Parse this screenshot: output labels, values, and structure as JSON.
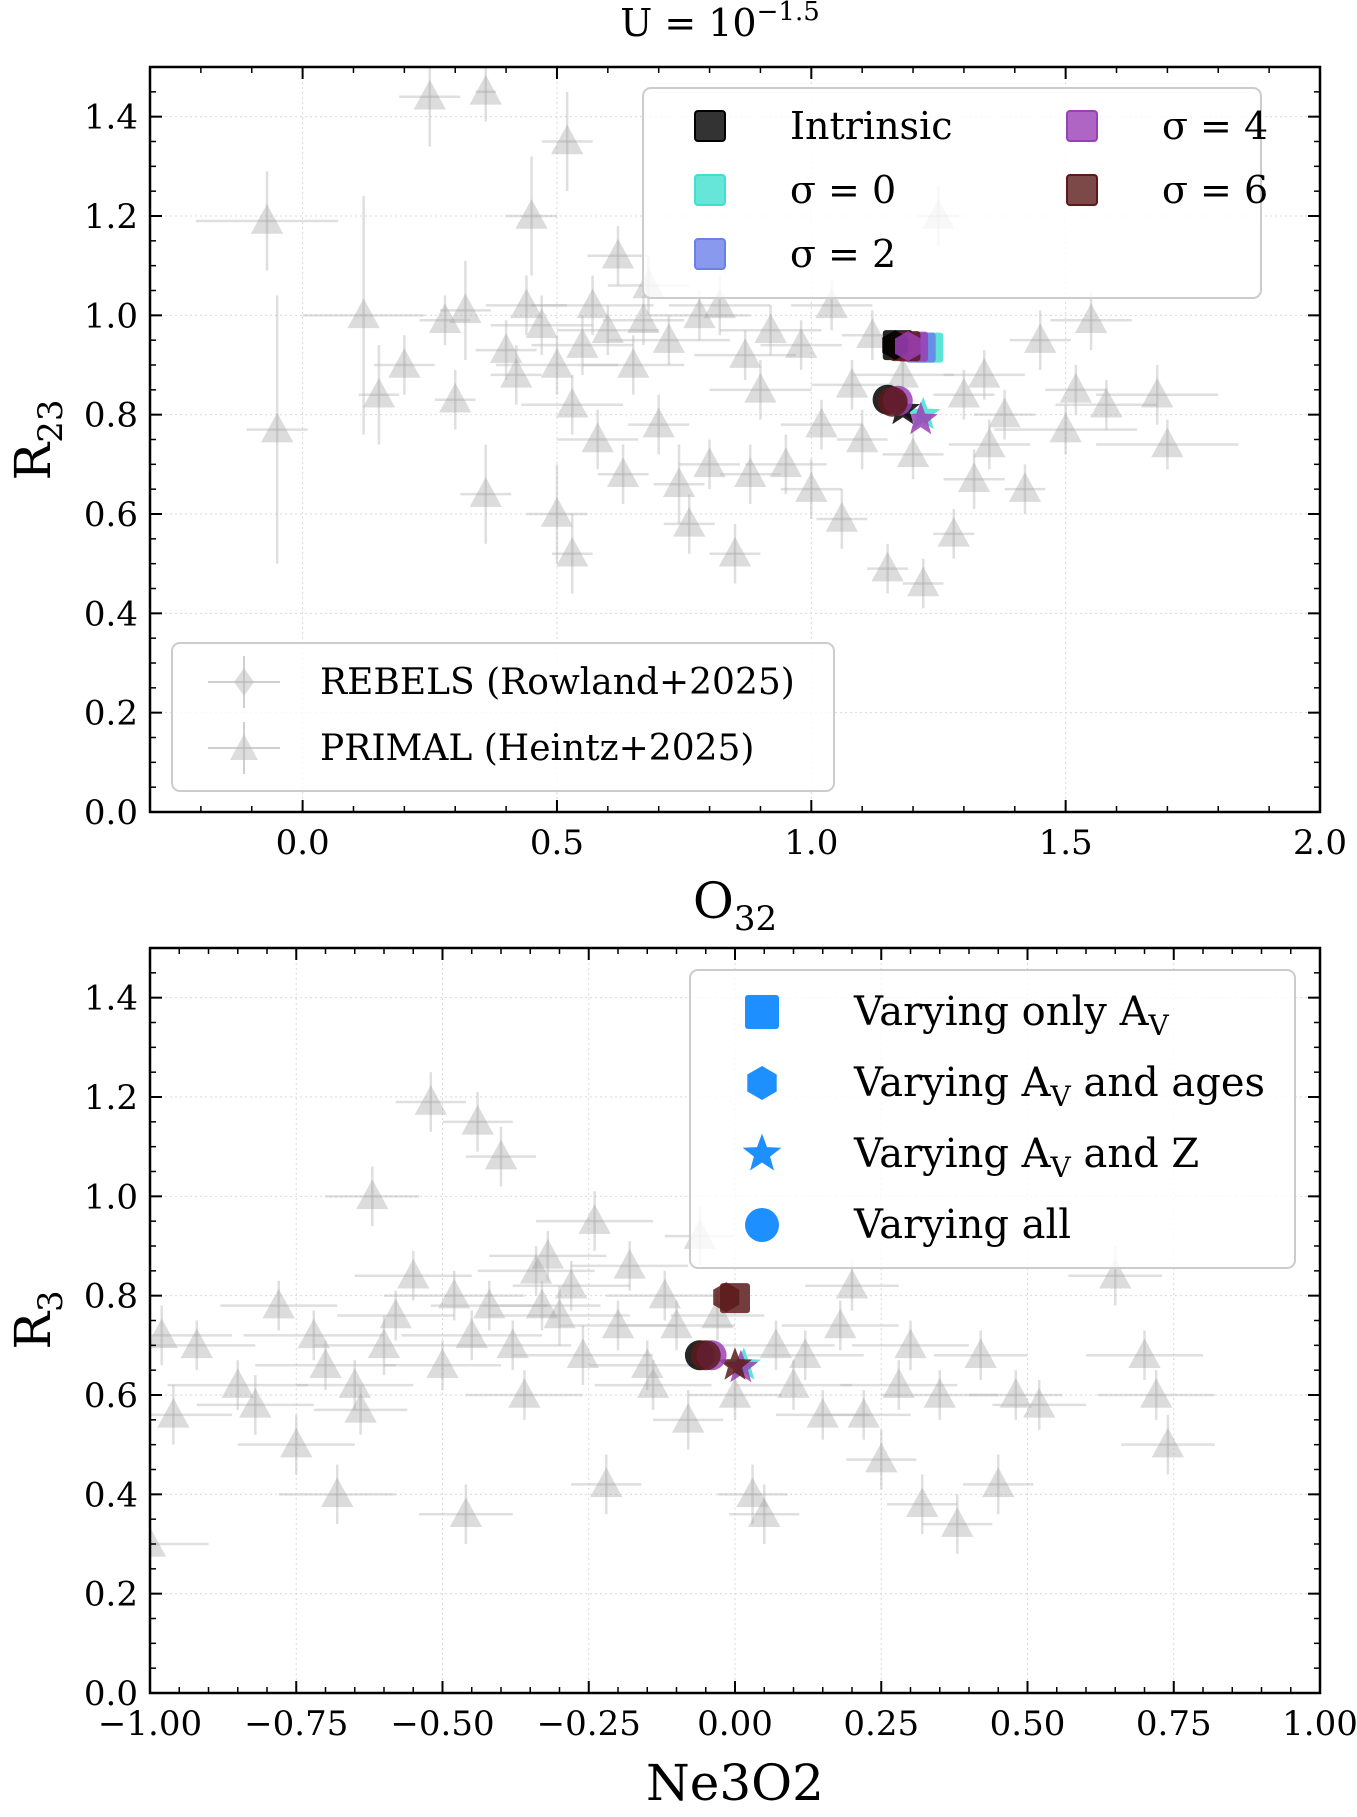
{
  "figure": {
    "title_prefix": "U = 10",
    "title_exponent": "−1.5"
  },
  "chart_data": [
    {
      "type": "scatter",
      "panel": "top",
      "xlabel": "O",
      "xlabel_sub": "32",
      "ylabel": "R",
      "ylabel_sub": "23",
      "xlim": [
        -0.3,
        2.0
      ],
      "ylim": [
        0.0,
        1.5
      ],
      "xticks": [
        0.0,
        0.5,
        1.0,
        1.5,
        2.0
      ],
      "xtick_labels": [
        "0.0",
        "0.5",
        "1.0",
        "1.5",
        "2.0"
      ],
      "yticks": [
        0.0,
        0.2,
        0.4,
        0.6,
        0.8,
        1.0,
        1.2,
        1.4
      ],
      "ytick_labels": [
        "0.0",
        "0.2",
        "0.4",
        "0.6",
        "0.8",
        "1.0",
        "1.2",
        "1.4"
      ],
      "grid": true,
      "legend_sigma": [
        {
          "label": "Intrinsic",
          "color": "#000000"
        },
        {
          "label": "σ = 0",
          "color": "#40e0d0"
        },
        {
          "label": "σ = 2",
          "color": "#6b7fe8"
        },
        {
          "label": "σ = 4",
          "color": "#9b3fb5"
        },
        {
          "label": "σ = 6",
          "color": "#5c1a1a"
        }
      ],
      "legend_obs": [
        {
          "label": "REBELS (Rowland+2025)",
          "marker": "diamond",
          "color": "#aaaaaa"
        },
        {
          "label": "PRIMAL (Heintz+2025)",
          "marker": "triangle",
          "color": "#aaaaaa"
        }
      ],
      "model_points": [
        {
          "group": "Varying only AV",
          "marker": "square",
          "series": "Intrinsic",
          "x": 1.17,
          "y": 0.94,
          "color": "#000000"
        },
        {
          "group": "Varying only AV",
          "marker": "square",
          "series": "sigma=0",
          "x": 1.23,
          "y": 0.935,
          "color": "#40e0d0"
        },
        {
          "group": "Varying only AV",
          "marker": "square",
          "series": "sigma=2",
          "x": 1.215,
          "y": 0.935,
          "color": "#6b7fe8"
        },
        {
          "group": "Varying only AV",
          "marker": "square",
          "series": "sigma=4",
          "x": 1.2,
          "y": 0.937,
          "color": "#9b3fb5"
        },
        {
          "group": "Varying only AV",
          "marker": "square",
          "series": "sigma=6",
          "x": 1.185,
          "y": 0.938,
          "color": "#5c1a1a"
        },
        {
          "group": "Varying AV and ages",
          "marker": "hexagon",
          "series": "Intrinsic",
          "x": 1.165,
          "y": 0.94,
          "color": "#000000"
        },
        {
          "group": "Varying AV and ages",
          "marker": "hexagon",
          "series": "sigma=4",
          "x": 1.19,
          "y": 0.938,
          "color": "#9b3fb5"
        },
        {
          "group": "Varying AV and Z",
          "marker": "star",
          "series": "sigma=0",
          "x": 1.22,
          "y": 0.8,
          "color": "#40e0d0"
        },
        {
          "group": "Varying AV and Z",
          "marker": "star",
          "series": "sigma=4",
          "x": 1.215,
          "y": 0.79,
          "color": "#9b3fb5"
        },
        {
          "group": "Varying AV and Z",
          "marker": "star",
          "series": "Intrinsic",
          "x": 1.18,
          "y": 0.81,
          "color": "#000000"
        },
        {
          "group": "Varying all",
          "marker": "circle",
          "series": "Intrinsic",
          "x": 1.15,
          "y": 0.83,
          "color": "#000000"
        },
        {
          "group": "Varying all",
          "marker": "circle",
          "series": "sigma=4",
          "x": 1.17,
          "y": 0.828,
          "color": "#9b3fb5"
        },
        {
          "group": "Varying all",
          "marker": "circle",
          "series": "sigma=6",
          "x": 1.16,
          "y": 0.826,
          "color": "#5c1a1a"
        }
      ],
      "obs_points": [
        [
          -0.07,
          1.19,
          0.14,
          0.1
        ],
        [
          -0.05,
          0.77,
          0.06,
          0.27
        ],
        [
          0.12,
          1.0,
          0.12,
          0.24
        ],
        [
          0.15,
          0.84,
          0.04,
          0.1
        ],
        [
          0.2,
          0.9,
          0.06,
          0.06
        ],
        [
          0.25,
          1.44,
          0.06,
          0.1
        ],
        [
          0.3,
          0.83,
          0.04,
          0.06
        ],
        [
          0.32,
          1.01,
          0.05,
          0.1
        ],
        [
          0.36,
          1.45,
          0.02,
          0.06
        ],
        [
          0.36,
          0.64,
          0.05,
          0.1
        ],
        [
          0.4,
          0.93,
          0.06,
          0.06
        ],
        [
          0.42,
          0.88,
          0.05,
          0.06
        ],
        [
          0.45,
          1.2,
          0.05,
          0.12
        ],
        [
          0.47,
          0.98,
          0.1,
          0.06
        ],
        [
          0.5,
          0.9,
          0.12,
          0.06
        ],
        [
          0.5,
          0.6,
          0.06,
          0.1
        ],
        [
          0.52,
          1.35,
          0.05,
          0.1
        ],
        [
          0.53,
          0.52,
          0.04,
          0.08
        ],
        [
          0.53,
          0.82,
          0.1,
          0.06
        ],
        [
          0.55,
          0.94,
          0.1,
          0.06
        ],
        [
          0.57,
          1.02,
          0.12,
          0.06
        ],
        [
          0.58,
          0.75,
          0.08,
          0.06
        ],
        [
          0.6,
          0.97,
          0.1,
          0.05
        ],
        [
          0.62,
          1.12,
          0.06,
          0.06
        ],
        [
          0.63,
          0.68,
          0.05,
          0.06
        ],
        [
          0.65,
          0.9,
          0.1,
          0.06
        ],
        [
          0.67,
          0.99,
          0.08,
          0.05
        ],
        [
          0.7,
          0.78,
          0.06,
          0.06
        ],
        [
          0.72,
          0.95,
          0.12,
          0.05
        ],
        [
          0.74,
          0.66,
          0.05,
          0.08
        ],
        [
          0.76,
          0.58,
          0.05,
          0.06
        ],
        [
          0.78,
          1.0,
          0.1,
          0.05
        ],
        [
          0.8,
          0.7,
          0.06,
          0.05
        ],
        [
          0.82,
          1.02,
          0.1,
          0.06
        ],
        [
          0.85,
          0.52,
          0.05,
          0.06
        ],
        [
          0.87,
          0.92,
          0.1,
          0.05
        ],
        [
          0.9,
          0.85,
          0.1,
          0.06
        ],
        [
          0.92,
          0.97,
          0.1,
          0.05
        ],
        [
          0.95,
          0.7,
          0.08,
          0.06
        ],
        [
          0.98,
          0.94,
          0.08,
          0.05
        ],
        [
          1.0,
          0.65,
          0.06,
          0.06
        ],
        [
          1.02,
          0.78,
          0.08,
          0.05
        ],
        [
          1.04,
          1.02,
          0.08,
          0.05
        ],
        [
          1.06,
          0.59,
          0.05,
          0.06
        ],
        [
          1.08,
          0.86,
          0.08,
          0.05
        ],
        [
          1.1,
          0.75,
          0.05,
          0.06
        ],
        [
          1.15,
          0.49,
          0.04,
          0.05
        ],
        [
          1.18,
          0.88,
          0.1,
          0.05
        ],
        [
          1.2,
          0.72,
          0.06,
          0.05
        ],
        [
          1.22,
          0.46,
          0.04,
          0.05
        ],
        [
          1.25,
          1.2,
          0.04,
          0.06
        ],
        [
          1.28,
          0.56,
          0.04,
          0.05
        ],
        [
          1.3,
          0.84,
          0.06,
          0.05
        ],
        [
          1.32,
          0.67,
          0.06,
          0.06
        ],
        [
          1.34,
          0.88,
          0.08,
          0.05
        ],
        [
          1.35,
          0.74,
          0.08,
          0.05
        ],
        [
          1.38,
          0.8,
          0.06,
          0.05
        ],
        [
          1.42,
          0.65,
          0.04,
          0.05
        ],
        [
          1.45,
          0.95,
          0.06,
          0.06
        ],
        [
          1.5,
          0.77,
          0.14,
          0.05
        ],
        [
          1.52,
          0.85,
          0.06,
          0.05
        ],
        [
          1.55,
          0.99,
          0.08,
          0.06
        ],
        [
          1.58,
          0.82,
          0.1,
          0.05
        ],
        [
          1.68,
          0.84,
          0.12,
          0.06
        ],
        [
          1.7,
          0.74,
          0.14,
          0.05
        ],
        [
          0.28,
          0.99,
          0.05,
          0.05
        ],
        [
          0.44,
          1.02,
          0.08,
          0.06
        ],
        [
          0.68,
          1.06,
          0.08,
          0.06
        ],
        [
          0.88,
          0.68,
          0.06,
          0.06
        ],
        [
          1.12,
          0.96,
          0.06,
          0.05
        ]
      ]
    },
    {
      "type": "scatter",
      "panel": "bottom",
      "xlabel": "Ne3O2",
      "ylabel": "R",
      "ylabel_sub": "3",
      "xlim": [
        -1.0,
        1.0
      ],
      "ylim": [
        0.0,
        1.5
      ],
      "xticks": [
        -1.0,
        -0.75,
        -0.5,
        -0.25,
        0.0,
        0.25,
        0.5,
        0.75,
        1.0
      ],
      "xtick_labels": [
        "−1.00",
        "−0.75",
        "−0.50",
        "−0.25",
        "0.00",
        "0.25",
        "0.50",
        "0.75",
        "1.00"
      ],
      "yticks": [
        0.0,
        0.2,
        0.4,
        0.6,
        0.8,
        1.0,
        1.2,
        1.4
      ],
      "ytick_labels": [
        "0.0",
        "0.2",
        "0.4",
        "0.6",
        "0.8",
        "1.0",
        "1.2",
        "1.4"
      ],
      "grid": true,
      "legend_markers": [
        {
          "label_main": "Varying only A",
          "label_sub": "V",
          "label_tail": "",
          "marker": "square",
          "color": "#1e8fff"
        },
        {
          "label_main": "Varying A",
          "label_sub": "V",
          "label_tail": " and ages",
          "marker": "hexagon",
          "color": "#1e8fff"
        },
        {
          "label_main": "Varying A",
          "label_sub": "V",
          "label_tail": " and Z",
          "marker": "star",
          "color": "#1e8fff"
        },
        {
          "label_main": "Varying all",
          "label_sub": "",
          "label_tail": "",
          "marker": "circle",
          "color": "#1e8fff"
        }
      ],
      "model_points": [
        {
          "group": "Varying only AV",
          "marker": "square",
          "series": "sigma=6",
          "x": 0.0,
          "y": 0.795,
          "color": "#5c1a1a"
        },
        {
          "group": "Varying AV and ages",
          "marker": "hexagon",
          "series": "sigma=6",
          "x": -0.015,
          "y": 0.797,
          "color": "#5c1a1a"
        },
        {
          "group": "Varying AV and Z",
          "marker": "star",
          "series": "sigma=0",
          "x": 0.015,
          "y": 0.66,
          "color": "#40e0d0"
        },
        {
          "group": "Varying AV and Z",
          "marker": "star",
          "series": "sigma=4",
          "x": 0.01,
          "y": 0.655,
          "color": "#9b3fb5"
        },
        {
          "group": "Varying AV and Z",
          "marker": "star",
          "series": "sigma=6",
          "x": 0.0,
          "y": 0.66,
          "color": "#5c1a1a"
        },
        {
          "group": "Varying all",
          "marker": "circle",
          "series": "Intrinsic",
          "x": -0.06,
          "y": 0.68,
          "color": "#000000"
        },
        {
          "group": "Varying all",
          "marker": "circle",
          "series": "sigma=4",
          "x": -0.04,
          "y": 0.68,
          "color": "#9b3fb5"
        },
        {
          "group": "Varying all",
          "marker": "circle",
          "series": "sigma=6",
          "x": -0.05,
          "y": 0.68,
          "color": "#5c1a1a"
        }
      ],
      "obs_points": [
        [
          -1.0,
          0.3,
          0.1,
          0.06
        ],
        [
          -0.98,
          0.72,
          0.12,
          0.06
        ],
        [
          -0.96,
          0.56,
          0.1,
          0.06
        ],
        [
          -0.92,
          0.7,
          0.1,
          0.05
        ],
        [
          -0.85,
          0.62,
          0.12,
          0.05
        ],
        [
          -0.82,
          0.58,
          0.1,
          0.06
        ],
        [
          -0.78,
          0.78,
          0.1,
          0.05
        ],
        [
          -0.75,
          0.5,
          0.1,
          0.06
        ],
        [
          -0.72,
          0.72,
          0.12,
          0.05
        ],
        [
          -0.68,
          0.4,
          0.1,
          0.06
        ],
        [
          -0.65,
          0.62,
          0.1,
          0.05
        ],
        [
          -0.64,
          0.57,
          0.08,
          0.05
        ],
        [
          -0.62,
          1.0,
          0.08,
          0.06
        ],
        [
          -0.6,
          0.7,
          0.12,
          0.06
        ],
        [
          -0.58,
          0.76,
          0.1,
          0.05
        ],
        [
          -0.55,
          0.84,
          0.1,
          0.05
        ],
        [
          -0.52,
          1.19,
          0.06,
          0.06
        ],
        [
          -0.5,
          0.66,
          0.1,
          0.05
        ],
        [
          -0.48,
          0.8,
          0.12,
          0.05
        ],
        [
          -0.46,
          0.36,
          0.08,
          0.06
        ],
        [
          -0.44,
          1.15,
          0.06,
          0.06
        ],
        [
          -0.42,
          0.78,
          0.1,
          0.05
        ],
        [
          -0.4,
          1.08,
          0.06,
          0.06
        ],
        [
          -0.38,
          0.7,
          0.1,
          0.05
        ],
        [
          -0.36,
          0.6,
          0.1,
          0.05
        ],
        [
          -0.34,
          0.85,
          0.1,
          0.05
        ],
        [
          -0.32,
          0.88,
          0.1,
          0.05
        ],
        [
          -0.3,
          0.76,
          0.12,
          0.06
        ],
        [
          -0.28,
          0.82,
          0.1,
          0.05
        ],
        [
          -0.26,
          0.68,
          0.12,
          0.06
        ],
        [
          -0.24,
          0.95,
          0.1,
          0.06
        ],
        [
          -0.22,
          0.42,
          0.06,
          0.06
        ],
        [
          -0.2,
          0.74,
          0.1,
          0.05
        ],
        [
          -0.18,
          0.86,
          0.1,
          0.05
        ],
        [
          -0.15,
          0.66,
          0.1,
          0.05
        ],
        [
          -0.12,
          0.8,
          0.1,
          0.05
        ],
        [
          -0.1,
          0.74,
          0.1,
          0.05
        ],
        [
          -0.08,
          0.55,
          0.06,
          0.06
        ],
        [
          -0.06,
          0.92,
          0.06,
          0.06
        ],
        [
          -0.03,
          0.76,
          0.08,
          0.05
        ],
        [
          0.0,
          0.6,
          0.08,
          0.05
        ],
        [
          0.03,
          0.4,
          0.06,
          0.06
        ],
        [
          0.05,
          0.36,
          0.06,
          0.06
        ],
        [
          0.07,
          0.7,
          0.1,
          0.05
        ],
        [
          0.1,
          0.62,
          0.1,
          0.05
        ],
        [
          0.12,
          0.68,
          0.1,
          0.05
        ],
        [
          0.15,
          0.56,
          0.08,
          0.05
        ],
        [
          0.18,
          0.74,
          0.1,
          0.05
        ],
        [
          0.2,
          0.82,
          0.08,
          0.05
        ],
        [
          0.22,
          0.56,
          0.08,
          0.05
        ],
        [
          0.25,
          0.47,
          0.06,
          0.06
        ],
        [
          0.28,
          0.62,
          0.1,
          0.05
        ],
        [
          0.3,
          0.7,
          0.1,
          0.05
        ],
        [
          0.32,
          0.38,
          0.06,
          0.06
        ],
        [
          0.35,
          0.6,
          0.1,
          0.05
        ],
        [
          0.38,
          0.34,
          0.06,
          0.06
        ],
        [
          0.42,
          0.68,
          0.08,
          0.05
        ],
        [
          0.45,
          0.42,
          0.06,
          0.06
        ],
        [
          0.48,
          0.6,
          0.08,
          0.05
        ],
        [
          0.52,
          0.58,
          0.08,
          0.05
        ],
        [
          0.65,
          0.84,
          0.08,
          0.06
        ],
        [
          0.7,
          0.68,
          0.1,
          0.05
        ],
        [
          0.72,
          0.6,
          0.1,
          0.05
        ],
        [
          0.74,
          0.5,
          0.08,
          0.06
        ],
        [
          -0.7,
          0.66,
          0.12,
          0.05
        ],
        [
          -0.45,
          0.72,
          0.12,
          0.05
        ],
        [
          -0.33,
          0.78,
          0.1,
          0.05
        ],
        [
          -0.14,
          0.62,
          0.1,
          0.05
        ]
      ]
    }
  ]
}
